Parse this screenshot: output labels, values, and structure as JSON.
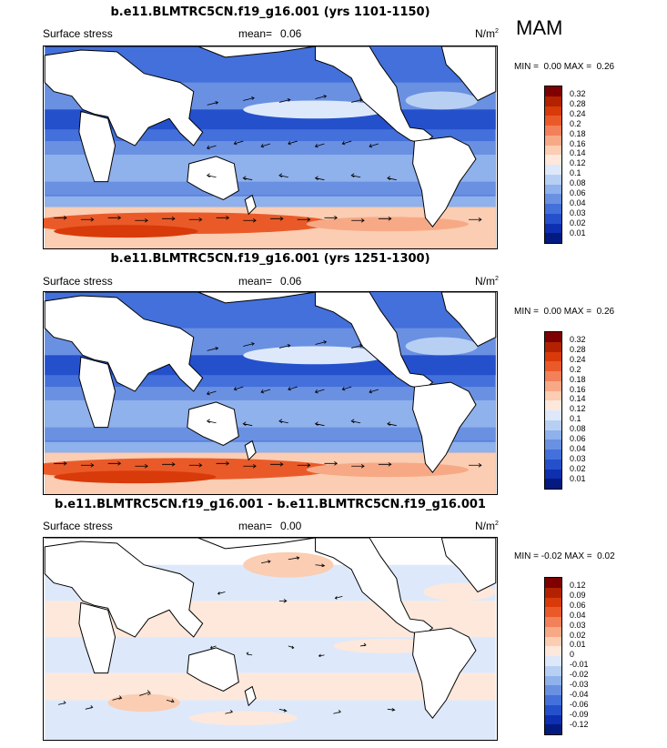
{
  "season": "MAM",
  "panels": [
    {
      "title": "b.e11.BLMTRC5CN.f19_g16.001 (yrs 1101-1150)",
      "variable": "Surface stress",
      "mean_label": "mean=",
      "mean_value": "0.06",
      "units": "N/m",
      "units_exp": "2",
      "min_label": "MIN =",
      "min_value": "0.00",
      "max_label": "MAX =",
      "max_value": "0.26",
      "colorbar": {
        "labels": [
          "0.32",
          "0.28",
          "0.24",
          "0.2",
          "0.18",
          "0.16",
          "0.14",
          "0.12",
          "0.1",
          "0.08",
          "0.06",
          "0.04",
          "0.03",
          "0.02",
          "0.01"
        ],
        "colors": [
          "#7f0000",
          "#b22200",
          "#d93a0a",
          "#ea5a28",
          "#f2805a",
          "#f7a986",
          "#fbcdb2",
          "#fde8db",
          "#dde9fb",
          "#b8cff4",
          "#8fb1ec",
          "#6a90e2",
          "#4370da",
          "#2450cc",
          "#0d2fb0",
          "#031b80"
        ]
      }
    },
    {
      "title": "b.e11.BLMTRC5CN.f19_g16.001 (yrs 1251-1300)",
      "variable": "Surface stress",
      "mean_label": "mean=",
      "mean_value": "0.06",
      "units": "N/m",
      "units_exp": "2",
      "min_label": "MIN =",
      "min_value": "0.00",
      "max_label": "MAX =",
      "max_value": "0.26",
      "colorbar": {
        "labels": [
          "0.32",
          "0.28",
          "0.24",
          "0.2",
          "0.18",
          "0.16",
          "0.14",
          "0.12",
          "0.1",
          "0.08",
          "0.06",
          "0.04",
          "0.03",
          "0.02",
          "0.01"
        ],
        "colors": [
          "#7f0000",
          "#b22200",
          "#d93a0a",
          "#ea5a28",
          "#f2805a",
          "#f7a986",
          "#fbcdb2",
          "#fde8db",
          "#dde9fb",
          "#b8cff4",
          "#8fb1ec",
          "#6a90e2",
          "#4370da",
          "#2450cc",
          "#0d2fb0",
          "#031b80"
        ]
      }
    },
    {
      "title": "b.e11.BLMTRC5CN.f19_g16.001 - b.e11.BLMTRC5CN.f19_g16.001",
      "variable": "Surface stress",
      "mean_label": "mean=",
      "mean_value": "0.00",
      "units": "N/m",
      "units_exp": "2",
      "min_label": "MIN =",
      "min_value": "-0.02",
      "max_label": "MAX =",
      "max_value": "0.02",
      "colorbar": {
        "labels": [
          "0.12",
          "0.09",
          "0.06",
          "0.04",
          "0.03",
          "0.02",
          "0.01",
          "0",
          "-0.01",
          "-0.02",
          "-0.03",
          "-0.04",
          "-0.06",
          "-0.09",
          "-0.12"
        ],
        "colors": [
          "#7f0000",
          "#b22200",
          "#d93a0a",
          "#ea5a28",
          "#f2805a",
          "#f7a986",
          "#fbcdb2",
          "#fde8db",
          "#dde9fb",
          "#b8cff4",
          "#8fb1ec",
          "#6a90e2",
          "#4370da",
          "#2450cc",
          "#0d2fb0",
          "#031b80"
        ]
      }
    }
  ]
}
